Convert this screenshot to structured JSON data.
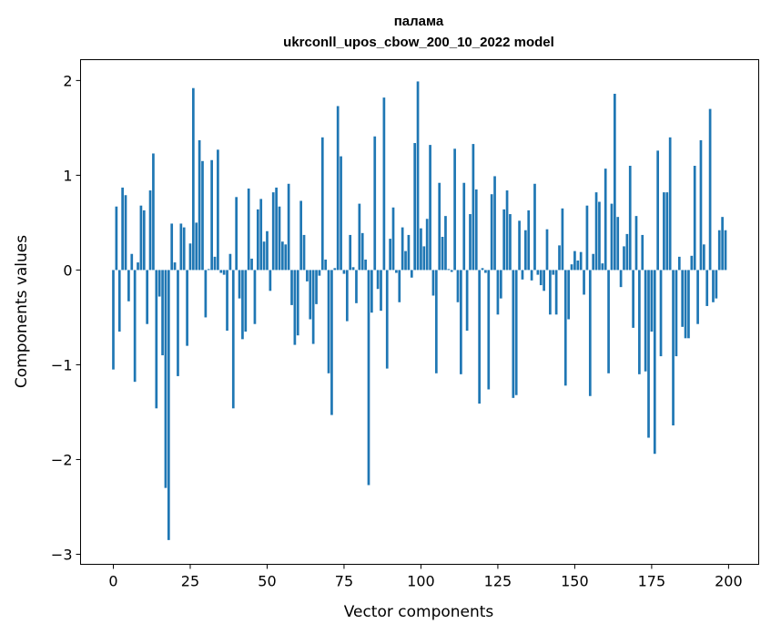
{
  "chart_data": {
    "type": "bar",
    "title_line1": "палама",
    "title_line2": "ukrconll_upos_cbow_200_10_2022 model",
    "xlabel": "Vector components",
    "ylabel": "Components values",
    "xlim": [
      -10.65,
      209.8
    ],
    "ylim": [
      -3.106,
      2.22
    ],
    "xticks": [
      0,
      25,
      50,
      75,
      100,
      125,
      150,
      175,
      200
    ],
    "yticks": [
      -3,
      -2,
      -1,
      0,
      1,
      2
    ],
    "ytick_labels": [
      "−3",
      "−2",
      "−1",
      "0",
      "1",
      "2"
    ],
    "grid": false,
    "color": "#1f77b4",
    "values": [
      -1.05,
      0.67,
      -0.65,
      0.87,
      0.79,
      -0.33,
      0.17,
      -1.18,
      0.08,
      0.68,
      0.63,
      -0.57,
      0.84,
      1.23,
      -1.46,
      -0.28,
      -0.9,
      -2.3,
      -2.85,
      0.49,
      0.08,
      -1.12,
      0.49,
      0.45,
      -0.8,
      0.28,
      1.92,
      0.5,
      1.37,
      1.15,
      -0.5,
      0.01,
      1.16,
      0.14,
      1.27,
      -0.03,
      -0.05,
      -0.64,
      0.17,
      -1.46,
      0.77,
      -0.3,
      -0.73,
      -0.65,
      0.86,
      0.12,
      -0.57,
      0.64,
      0.75,
      0.3,
      0.41,
      -0.22,
      0.82,
      0.87,
      0.67,
      0.3,
      0.27,
      0.91,
      -0.37,
      -0.79,
      -0.69,
      0.73,
      0.37,
      -0.12,
      -0.52,
      -0.78,
      -0.36,
      -0.06,
      1.4,
      0.11,
      -1.09,
      -1.53,
      0.02,
      1.73,
      1.2,
      -0.04,
      -0.54,
      0.37,
      0.03,
      -0.35,
      0.7,
      0.39,
      0.11,
      -2.27,
      -0.45,
      1.41,
      -0.2,
      -0.43,
      1.82,
      -1.04,
      0.33,
      0.66,
      -0.03,
      -0.34,
      0.45,
      0.2,
      0.37,
      -0.08,
      1.34,
      1.99,
      0.44,
      0.25,
      0.54,
      1.32,
      -0.27,
      -1.09,
      0.92,
      0.35,
      0.57,
      0.01,
      -0.02,
      1.28,
      -0.34,
      -1.1,
      0.92,
      -0.64,
      0.59,
      1.33,
      0.85,
      -1.41,
      0.02,
      -0.03,
      -1.26,
      0.8,
      0.99,
      -0.47,
      -0.3,
      0.64,
      0.84,
      0.59,
      -1.35,
      -1.32,
      0.52,
      -0.1,
      0.42,
      0.63,
      -0.11,
      0.91,
      -0.05,
      -0.16,
      -0.22,
      0.43,
      -0.47,
      -0.05,
      -0.47,
      0.26,
      0.65,
      -1.22,
      -0.52,
      0.06,
      0.2,
      0.1,
      0.19,
      -0.26,
      0.68,
      -1.33,
      0.17,
      0.82,
      0.72,
      0.07,
      1.07,
      -1.09,
      0.7,
      1.86,
      0.56,
      -0.18,
      0.25,
      0.38,
      1.1,
      -0.61,
      0.57,
      -1.1,
      0.37,
      -1.07,
      -1.77,
      -0.65,
      -1.94,
      1.26,
      -0.91,
      0.82,
      0.82,
      1.4,
      -1.64,
      -0.91,
      0.14,
      -0.6,
      -0.72,
      -0.72,
      0.15,
      1.1,
      -0.57,
      1.37,
      0.27,
      -0.38,
      1.7,
      -0.34,
      -0.3,
      0.42,
      0.56,
      0.42
    ]
  }
}
